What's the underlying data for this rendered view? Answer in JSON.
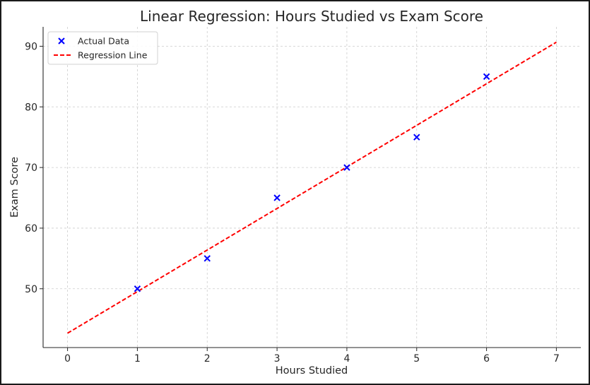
{
  "chart_data": {
    "type": "scatter",
    "title": "Linear Regression: Hours Studied vs Exam Score",
    "xlabel": "Hours Studied",
    "ylabel": "Exam Score",
    "xlim": [
      -0.35,
      7.35
    ],
    "ylim": [
      40.3,
      93.2
    ],
    "xticks": [
      0,
      1,
      2,
      3,
      4,
      5,
      6,
      7
    ],
    "yticks": [
      50,
      60,
      70,
      80,
      90
    ],
    "grid": true,
    "legend_position": "top-left",
    "series": [
      {
        "name": "Actual Data",
        "kind": "scatter",
        "marker": "x",
        "color": "#0000ff",
        "x": [
          1,
          2,
          3,
          4,
          5,
          6
        ],
        "y": [
          50,
          55,
          65,
          70,
          75,
          85
        ]
      },
      {
        "name": "Regression Line",
        "kind": "line",
        "style": "dashed",
        "color": "#ff0000",
        "x": [
          0,
          7
        ],
        "y": [
          42.67,
          90.67
        ]
      }
    ]
  }
}
